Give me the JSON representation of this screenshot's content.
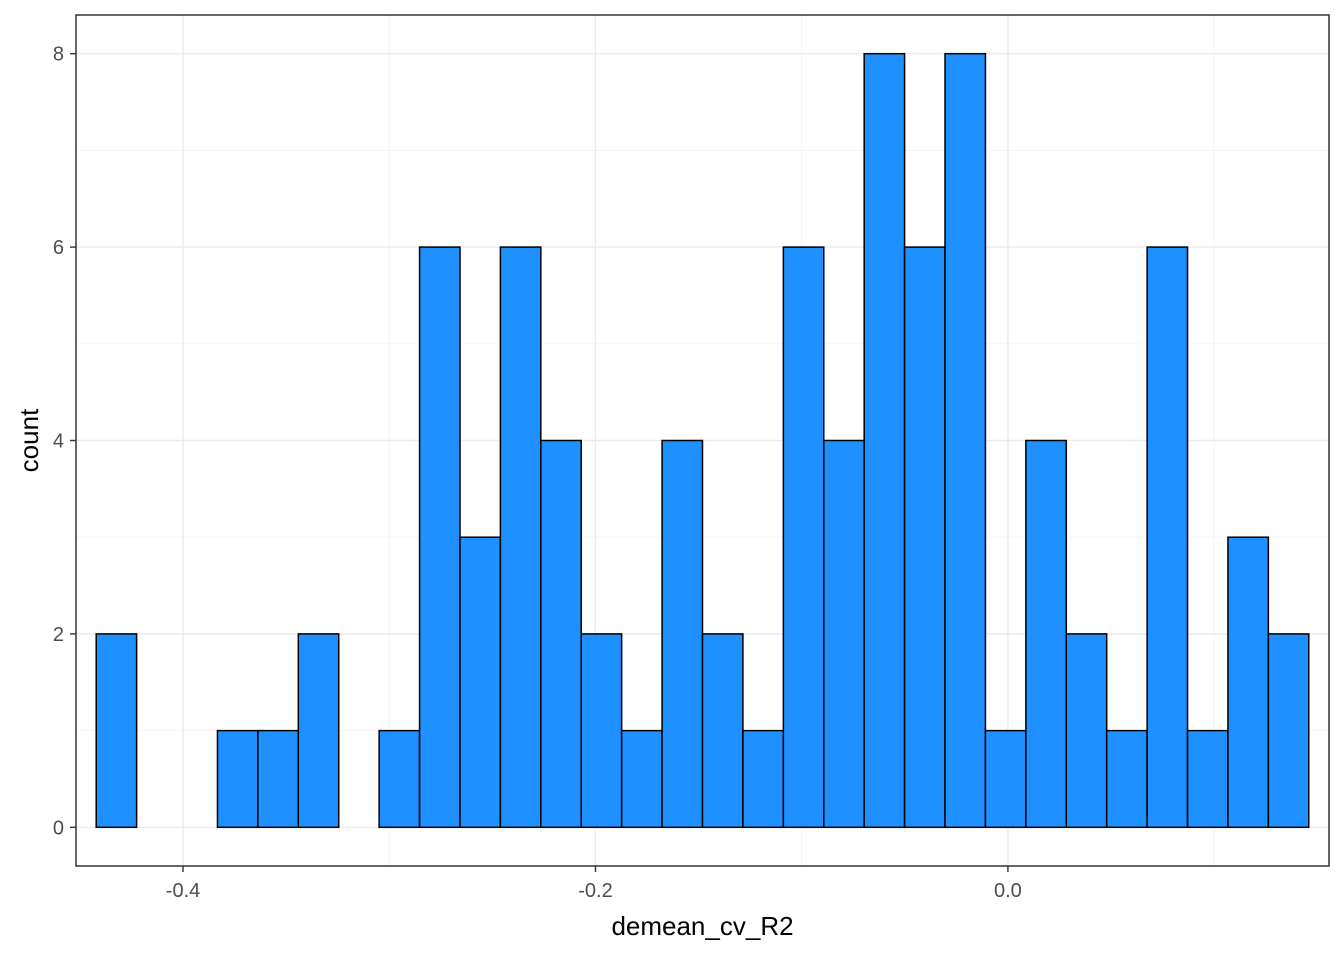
{
  "chart_data": {
    "type": "bar",
    "subtype": "histogram",
    "xlabel": "demean_cv_R2",
    "ylabel": "count",
    "bin_width": 0.0196,
    "bins": [
      {
        "center": -0.4323,
        "count": 2
      },
      {
        "center": -0.4127,
        "count": 0
      },
      {
        "center": -0.3931,
        "count": 0
      },
      {
        "center": -0.3735,
        "count": 1
      },
      {
        "center": -0.3539,
        "count": 1
      },
      {
        "center": -0.3343,
        "count": 2
      },
      {
        "center": -0.3147,
        "count": 0
      },
      {
        "center": -0.2951,
        "count": 1
      },
      {
        "center": -0.2755,
        "count": 6
      },
      {
        "center": -0.2559,
        "count": 3
      },
      {
        "center": -0.2363,
        "count": 6
      },
      {
        "center": -0.2167,
        "count": 4
      },
      {
        "center": -0.1971,
        "count": 2
      },
      {
        "center": -0.1775,
        "count": 1
      },
      {
        "center": -0.1579,
        "count": 4
      },
      {
        "center": -0.1383,
        "count": 2
      },
      {
        "center": -0.1187,
        "count": 1
      },
      {
        "center": -0.0991,
        "count": 6
      },
      {
        "center": -0.0795,
        "count": 4
      },
      {
        "center": -0.0599,
        "count": 8
      },
      {
        "center": -0.0403,
        "count": 6
      },
      {
        "center": -0.0207,
        "count": 8
      },
      {
        "center": -0.0011,
        "count": 1
      },
      {
        "center": 0.0185,
        "count": 4
      },
      {
        "center": 0.0381,
        "count": 2
      },
      {
        "center": 0.0577,
        "count": 1
      },
      {
        "center": 0.0773,
        "count": 6
      },
      {
        "center": 0.0969,
        "count": 1
      },
      {
        "center": 0.1165,
        "count": 3
      },
      {
        "center": 0.1361,
        "count": 2
      }
    ],
    "xlim": [
      -0.4519,
      0.1557
    ],
    "ylim": [
      -0.4,
      8.4
    ],
    "x_ticks": [
      {
        "value": -0.4,
        "label": "-0.4"
      },
      {
        "value": -0.2,
        "label": "-0.2"
      },
      {
        "value": 0.0,
        "label": "0.0"
      }
    ],
    "y_ticks": [
      {
        "value": 0,
        "label": "0"
      },
      {
        "value": 2,
        "label": "2"
      },
      {
        "value": 4,
        "label": "4"
      },
      {
        "value": 6,
        "label": "6"
      },
      {
        "value": 8,
        "label": "8"
      }
    ],
    "x_minor_breaks": [
      -0.3,
      -0.1,
      0.1
    ],
    "y_minor_breaks": [
      1,
      3,
      5,
      7
    ],
    "grid": true,
    "legend": "none",
    "colors": {
      "bar_fill": "#1E90FF",
      "bar_outline": "#000000",
      "grid_major": "#EBEBEB",
      "grid_minor": "#F5F5F5",
      "panel_border": "#333333",
      "tick_text": "#4D4D4D"
    }
  }
}
